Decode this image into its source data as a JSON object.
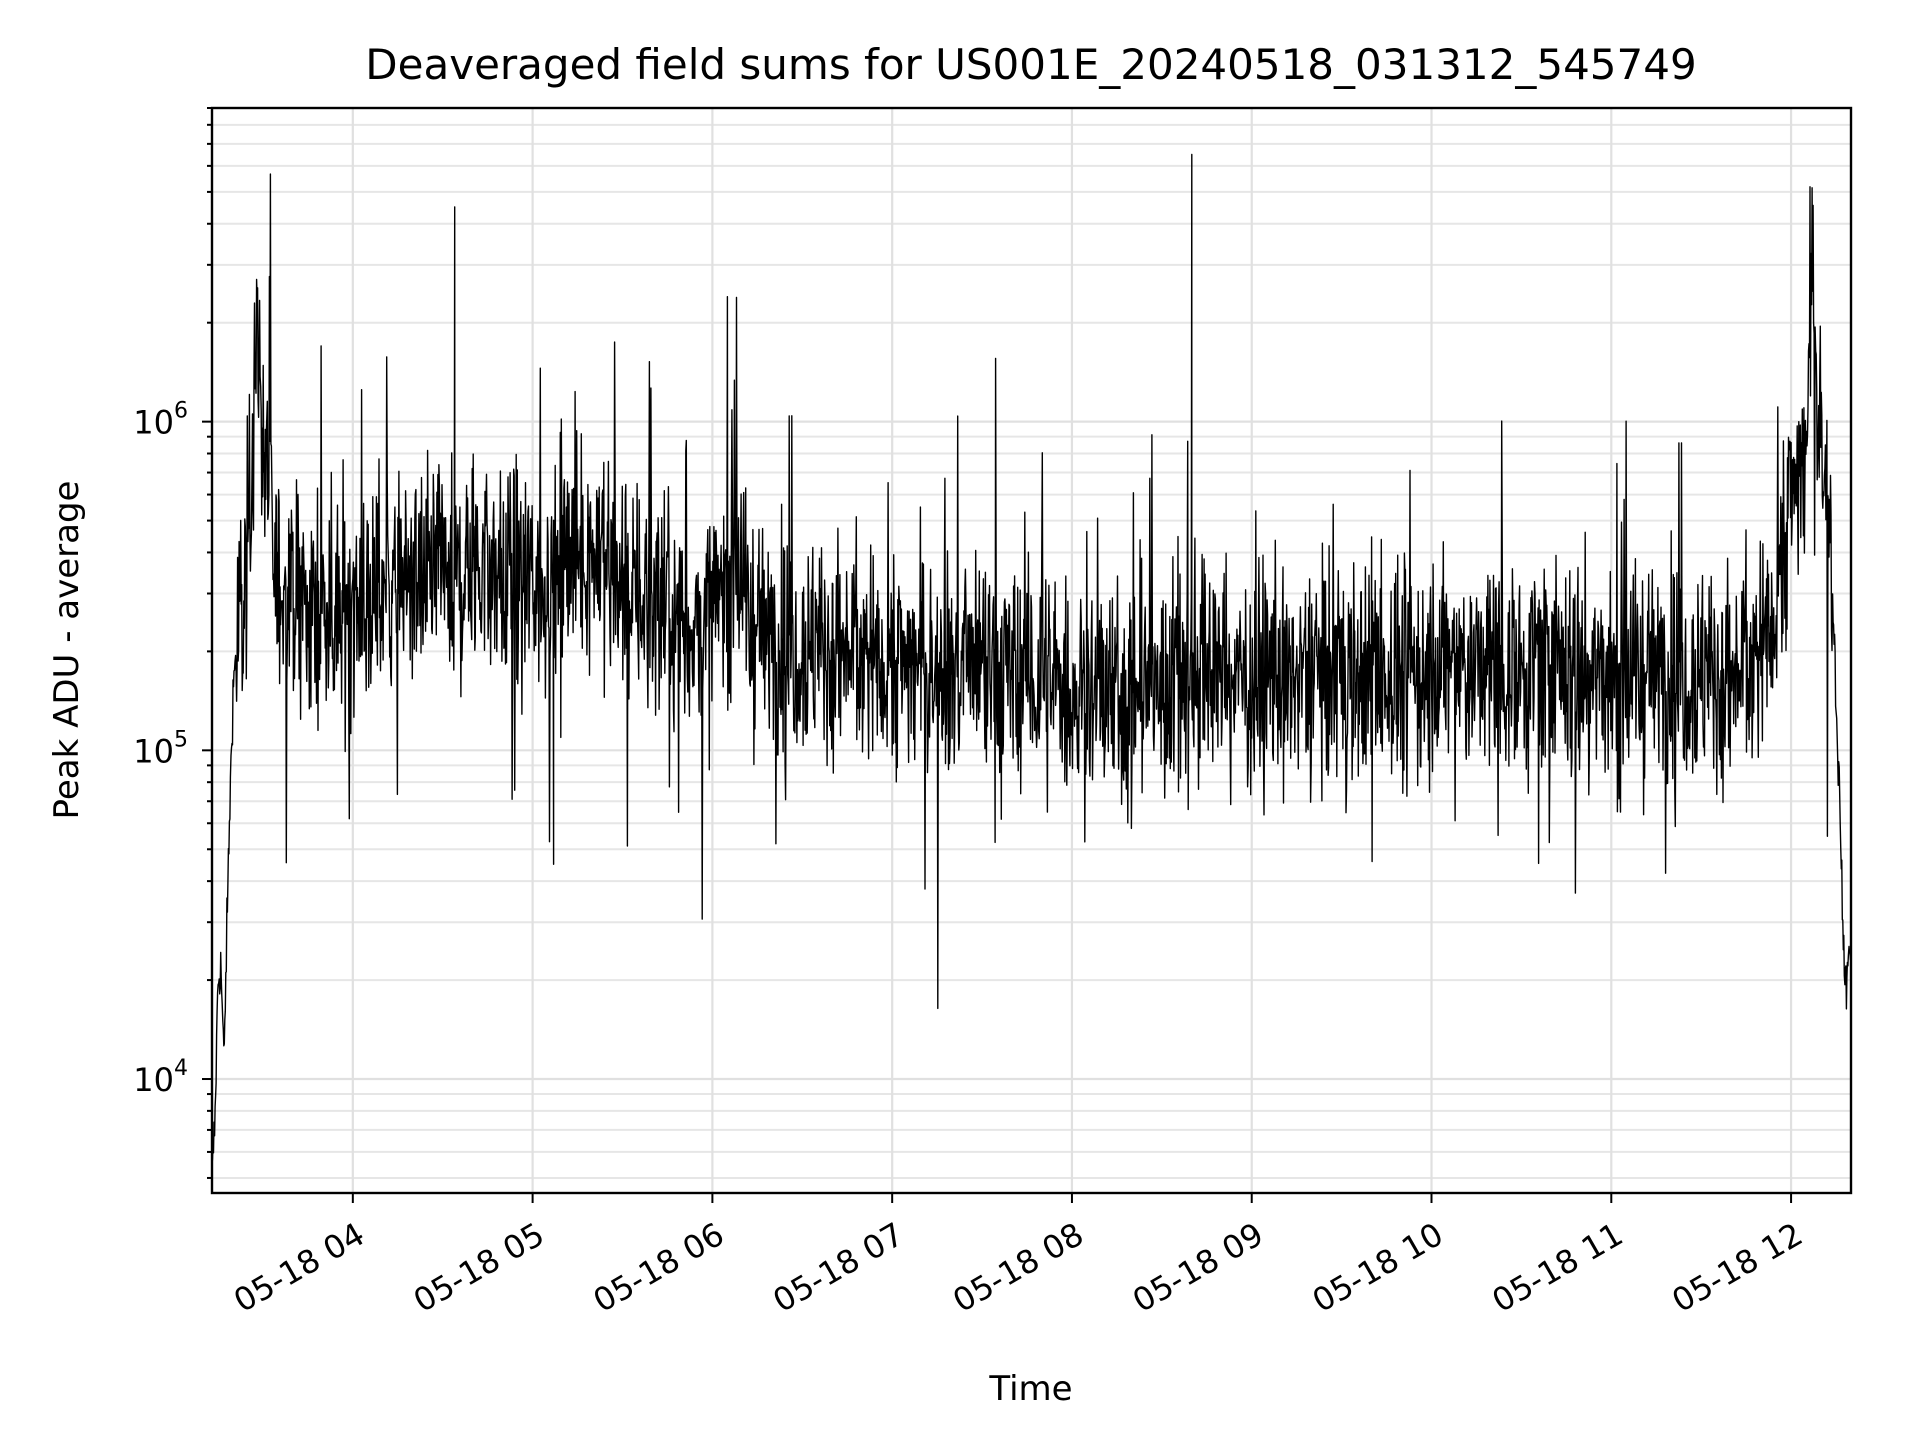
{
  "chart_data": {
    "type": "line",
    "title": "Deaveraged field sums for US001E_20240518_031312_545749",
    "xlabel": "Time",
    "ylabel": "Peak ADU - average",
    "yscale": "log",
    "ylim": [
      4500,
      9000000
    ],
    "xlim": [
      "2024-05-18 03:13",
      "2024-05-18 12:20"
    ],
    "grid": "on (major and minor)",
    "x_ticks": [
      "05-18 04",
      "05-18 05",
      "05-18 06",
      "05-18 07",
      "05-18 08",
      "05-18 09",
      "05-18 10",
      "05-18 11",
      "05-18 12"
    ],
    "y_ticks": [
      {
        "value": 10000,
        "base": "10",
        "exp": "4"
      },
      {
        "value": 100000,
        "base": "10",
        "exp": "5"
      },
      {
        "value": 1000000,
        "base": "10",
        "exp": "6"
      }
    ],
    "series": [
      {
        "color": "#000000",
        "points": [
          [
            "2024-05-18 03:13",
            5000
          ],
          [
            "2024-05-18 03:14",
            7500
          ],
          [
            "2024-05-18 03:15",
            20000
          ],
          [
            "2024-05-18 03:16",
            22000
          ],
          [
            "2024-05-18 03:17",
            11000
          ],
          [
            "2024-05-18 03:18",
            30000
          ],
          [
            "2024-05-18 03:19",
            70000
          ],
          [
            "2024-05-18 03:20",
            150000
          ],
          [
            "2024-05-18 03:21",
            200000
          ],
          [
            "2024-05-18 03:23",
            250000
          ],
          [
            "2024-05-18 03:25",
            450000
          ],
          [
            "2024-05-18 03:27",
            1000000
          ],
          [
            "2024-05-18 03:28",
            2100000
          ],
          [
            "2024-05-18 03:29",
            1500000
          ],
          [
            "2024-05-18 03:30",
            900000
          ],
          [
            "2024-05-18 03:33",
            400000
          ],
          [
            "2024-05-18 03:36",
            300000
          ],
          [
            "2024-05-18 03:40",
            280000
          ],
          [
            "2024-05-18 03:45",
            260000
          ],
          [
            "2024-05-18 03:50",
            290000
          ],
          [
            "2024-05-18 03:55",
            250000
          ],
          [
            "2024-05-18 04:00",
            310000
          ],
          [
            "2024-05-18 04:05",
            270000
          ],
          [
            "2024-05-18 04:10",
            330000
          ],
          [
            "2024-05-18 04:15",
            300000
          ],
          [
            "2024-05-18 04:20",
            340000
          ],
          [
            "2024-05-18 04:25",
            310000
          ],
          [
            "2024-05-18 04:30",
            350000
          ],
          [
            "2024-05-18 04:34",
            4500000
          ],
          [
            "2024-05-18 04:35",
            320000
          ],
          [
            "2024-05-18 04:40",
            380000
          ],
          [
            "2024-05-18 04:45",
            360000
          ],
          [
            "2024-05-18 04:50",
            330000
          ],
          [
            "2024-05-18 04:55",
            300000
          ],
          [
            "2024-05-18 05:00",
            340000
          ],
          [
            "2024-05-18 05:05",
            310000
          ],
          [
            "2024-05-18 05:07",
            45000
          ],
          [
            "2024-05-18 05:10",
            360000
          ],
          [
            "2024-05-18 05:15",
            420000
          ],
          [
            "2024-05-18 05:20",
            400000
          ],
          [
            "2024-05-18 05:25",
            380000
          ],
          [
            "2024-05-18 05:30",
            330000
          ],
          [
            "2024-05-18 05:35",
            280000
          ],
          [
            "2024-05-18 05:40",
            300000
          ],
          [
            "2024-05-18 05:45",
            260000
          ],
          [
            "2024-05-18 05:50",
            240000
          ],
          [
            "2024-05-18 05:55",
            230000
          ],
          [
            "2024-05-18 06:00",
            250000
          ],
          [
            "2024-05-18 06:05",
            2400000
          ],
          [
            "2024-05-18 06:08",
            400000
          ],
          [
            "2024-05-18 06:12",
            250000
          ],
          [
            "2024-05-18 06:20",
            220000
          ],
          [
            "2024-05-18 06:30",
            210000
          ],
          [
            "2024-05-18 06:40",
            200000
          ],
          [
            "2024-05-18 06:50",
            195000
          ],
          [
            "2024-05-18 07:00",
            190000
          ],
          [
            "2024-05-18 07:10",
            180000
          ],
          [
            "2024-05-18 07:20",
            175000
          ],
          [
            "2024-05-18 07:30",
            170000
          ],
          [
            "2024-05-18 07:40",
            165000
          ],
          [
            "2024-05-18 07:50",
            160000
          ],
          [
            "2024-05-18 08:00",
            150000
          ],
          [
            "2024-05-18 08:10",
            145000
          ],
          [
            "2024-05-18 08:20",
            150000
          ],
          [
            "2024-05-18 08:30",
            160000
          ],
          [
            "2024-05-18 08:40",
            6500000
          ],
          [
            "2024-05-18 08:45",
            180000
          ],
          [
            "2024-05-18 08:50",
            170000
          ],
          [
            "2024-05-18 09:00",
            165000
          ],
          [
            "2024-05-18 09:10",
            160000
          ],
          [
            "2024-05-18 09:20",
            170000
          ],
          [
            "2024-05-18 09:30",
            175000
          ],
          [
            "2024-05-18 09:40",
            165000
          ],
          [
            "2024-05-18 09:50",
            170000
          ],
          [
            "2024-05-18 10:00",
            175000
          ],
          [
            "2024-05-18 10:10",
            180000
          ],
          [
            "2024-05-18 10:20",
            175000
          ],
          [
            "2024-05-18 10:30",
            185000
          ],
          [
            "2024-05-18 10:40",
            180000
          ],
          [
            "2024-05-18 10:50",
            175000
          ],
          [
            "2024-05-18 11:00",
            165000
          ],
          [
            "2024-05-18 11:10",
            170000
          ],
          [
            "2024-05-18 11:20",
            180000
          ],
          [
            "2024-05-18 11:30",
            170000
          ],
          [
            "2024-05-18 11:40",
            160000
          ],
          [
            "2024-05-18 11:50",
            200000
          ],
          [
            "2024-05-18 11:55",
            300000
          ],
          [
            "2024-05-18 12:00",
            600000
          ],
          [
            "2024-05-18 12:05",
            800000
          ],
          [
            "2024-05-18 12:07",
            2500000
          ],
          [
            "2024-05-18 12:10",
            900000
          ],
          [
            "2024-05-18 12:13",
            500000
          ],
          [
            "2024-05-18 12:16",
            80000
          ],
          [
            "2024-05-18 12:18",
            18000
          ],
          [
            "2024-05-18 12:20",
            28000
          ]
        ]
      }
    ]
  }
}
